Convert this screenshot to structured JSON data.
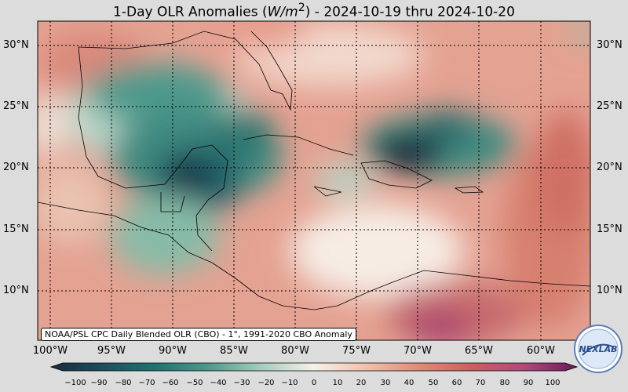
{
  "title": {
    "prefix": "1-Day OLR Anomalies (",
    "unit_var": "W/m",
    "unit_exp": "2",
    "suffix": ") - 2024-10-19 thru 2024-10-20"
  },
  "credit": "NOAA/PSL CPC Daily Blended OLR (CBO) - 1°, 1991-2020 CBO Anomaly",
  "lat_labels": [
    "30°N",
    "25°N",
    "20°N",
    "15°N",
    "10°N"
  ],
  "lon_labels": [
    "100°W",
    "95°W",
    "90°W",
    "85°W",
    "80°W",
    "75°W",
    "70°W",
    "65°W",
    "60°W"
  ],
  "colorbar": {
    "ticks": [
      "−100",
      "−90",
      "−80",
      "−70",
      "−60",
      "−50",
      "−40",
      "−30",
      "−20",
      "−10",
      "0",
      "10",
      "20",
      "30",
      "40",
      "50",
      "60",
      "70",
      "80",
      "90",
      "100"
    ],
    "colors": [
      "#1b2a3d",
      "#1d4f5c",
      "#1f7470",
      "#4d9a8c",
      "#a6cdbd",
      "#f7f1ea",
      "#efc0ac",
      "#e08a78",
      "#c95f61",
      "#b04a7a",
      "#6a1a55"
    ]
  },
  "logo_text": "NEXLAB"
}
